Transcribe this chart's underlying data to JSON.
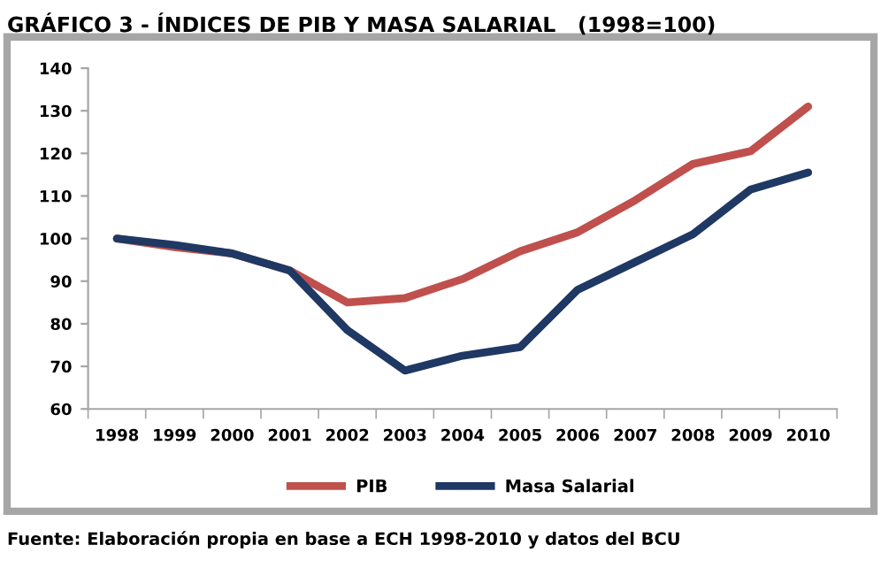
{
  "chart_data": {
    "type": "line",
    "title": "GRÁFICO 3 - ÍNDICES DE PIB Y MASA SALARIAL   (1998=100)",
    "categories": [
      "1998",
      "1999",
      "2000",
      "2001",
      "2002",
      "2003",
      "2004",
      "2005",
      "2006",
      "2007",
      "2008",
      "2009",
      "2010"
    ],
    "series": [
      {
        "name": "PIB",
        "color": "#c0504d",
        "values": [
          100,
          98,
          96.5,
          92.5,
          85,
          86,
          90.5,
          97,
          101.5,
          109,
          117.5,
          120.5,
          131
        ]
      },
      {
        "name": "Masa Salarial",
        "color": "#1f3864",
        "values": [
          100,
          98.5,
          96.5,
          92.5,
          78.5,
          69,
          72.5,
          74.5,
          88,
          94.5,
          101,
          111.5,
          115.5
        ]
      }
    ],
    "ylim": [
      60,
      140
    ],
    "yticks": [
      60,
      70,
      80,
      90,
      100,
      110,
      120,
      130,
      140
    ],
    "grid": false,
    "legend": "bottom",
    "marker": "none",
    "line_style": "solid",
    "annotations": [
      "Fuente: Elaboración propia en base a ECH 1998-2010 y datos del BCU"
    ]
  }
}
